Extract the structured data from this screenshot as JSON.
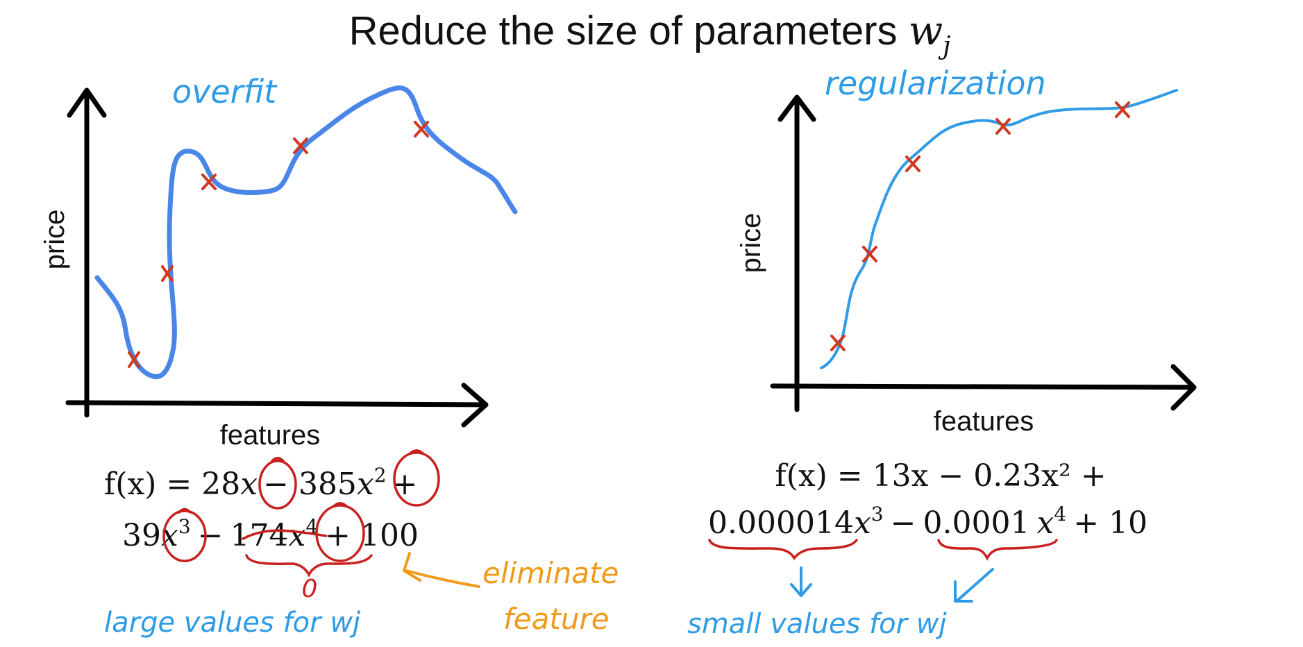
{
  "slide": {
    "title_text": "Reduce the size of parameters ",
    "title_var": "w",
    "title_sub": "j"
  },
  "left_panel": {
    "annotation": "overfit",
    "ylabel": "price",
    "xlabel": "features",
    "eq_line1": {
      "t1": "f(x) = 28",
      "t2": "x",
      "t3": "− 385",
      "t4": "x",
      "t4sup": "2",
      "t5": "+"
    },
    "eq_line2": {
      "t1": "39",
      "t2": "x",
      "t2sup": "3",
      "t3": "−",
      "t4": "174",
      "t5": "x",
      "t5sup": "4",
      "t6": "+ 100"
    },
    "zero_note": "0",
    "elim_note_1": "eliminate",
    "elim_note_2": "feature",
    "bottom_note": "large values for wj"
  },
  "right_panel": {
    "annotation": "regularization",
    "ylabel": "price",
    "xlabel": "features",
    "eq_line1": "f(x) = 13x − 0.23x² +",
    "eq_line2": {
      "t1": "0.000014",
      "t2": "x",
      "t2sup": "3",
      "t3": "−",
      "t4": "0.0001",
      "t5": "x",
      "t5sup": "4",
      "t6": "+ 10"
    },
    "bottom_note": "small values for wj"
  },
  "colors": {
    "axis": "#000000",
    "curve_overfit": "#4A86E8",
    "curve_regularized": "#2E9BE6",
    "data_point": "#D0391F",
    "handwriting_blue": "#2E9BE6",
    "handwriting_red": "#C8201E",
    "handwriting_orange": "#F09A1A"
  },
  "icons": {
    "data_point": "cross-mark",
    "arrow": "hand-drawn-arrow"
  }
}
